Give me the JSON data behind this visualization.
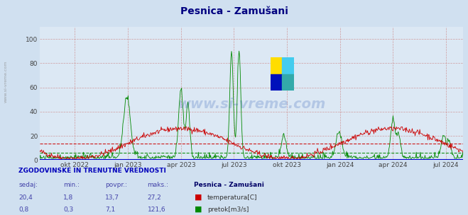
{
  "title": "Pesnica - Zamušani",
  "title_color": "#000080",
  "background_color": "#d0e0f0",
  "plot_bg_color": "#dce8f4",
  "ylim": [
    0,
    110
  ],
  "yticks": [
    0,
    20,
    40,
    60,
    80,
    100
  ],
  "xlabel_dates": [
    "okt 2022",
    "jan 2023",
    "apr 2023",
    "jul 2023",
    "okt 2023",
    "jan 2024",
    "apr 2024",
    "jul 2024"
  ],
  "temp_color": "#cc0000",
  "flow_color": "#008800",
  "avg_temp": 13.7,
  "avg_flow": 7.1,
  "flow_max": 121.6,
  "watermark": "www.si-vreme.com",
  "legend_title": "Pesnica - Zamušani",
  "stats_header": "ZGODOVINSKE IN TRENUTNE VREDNOSTI",
  "col_headers": [
    "sedaj:",
    "min.:",
    "povpr.:",
    "maks.:"
  ],
  "temp_stats": [
    "20,4",
    "1,8",
    "13,7",
    "27,2"
  ],
  "flow_stats": [
    "0,8",
    "0,3",
    "7,1",
    "121,6"
  ],
  "temp_label": "temperatura[C]",
  "flow_label": "pretok[m3/s]",
  "n_points": 730,
  "grid_color": "#cc8888",
  "vgrid_color": "#cc8888"
}
